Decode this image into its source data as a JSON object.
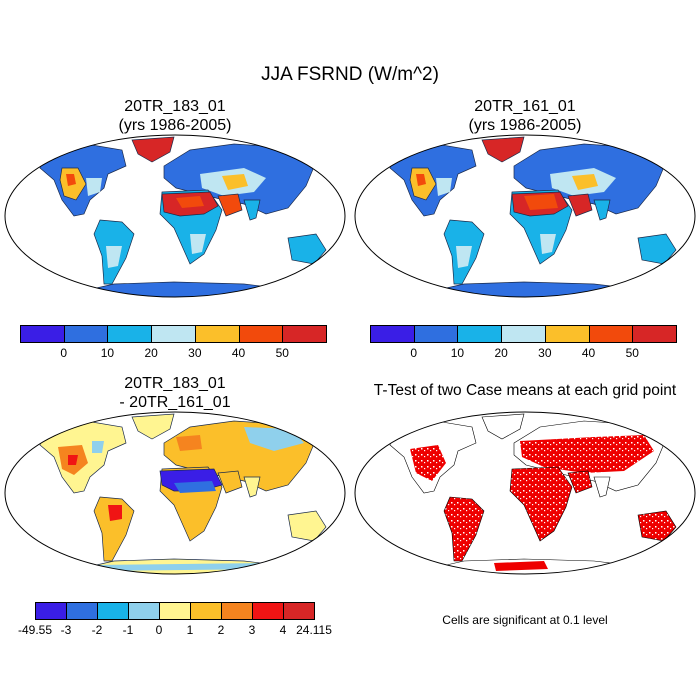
{
  "title": "JJA FSRND (W/m^2)",
  "panels": {
    "case1": {
      "line1": "20TR_183_01",
      "line2": "(yrs 1986-2005)"
    },
    "case2": {
      "line1": "20TR_161_01",
      "line2": "(yrs 1986-2005)"
    },
    "diff": {
      "line1": "20TR_183_01",
      "line2": "- 20TR_161_01"
    },
    "ttest": {
      "title": "T-Test of two Case means at each grid point"
    }
  },
  "colorbar_main": {
    "colors": [
      "#3a1ee6",
      "#2f6fe0",
      "#19b2e8",
      "#bfe6f2",
      "#fbbf2a",
      "#f24a0c",
      "#d72626"
    ],
    "labels": [
      "0",
      "10",
      "20",
      "30",
      "40",
      "50"
    ]
  },
  "colorbar_diff": {
    "colors": [
      "#3a1ee6",
      "#2f6fe0",
      "#19b2e8",
      "#8fd0ec",
      "#fff591",
      "#fbbf2a",
      "#f5841f",
      "#f01414",
      "#d72626"
    ],
    "labels": [
      "-49.55",
      "-3",
      "-2",
      "-1",
      "0",
      "1",
      "2",
      "3",
      "4",
      "24.115"
    ]
  },
  "note": "Cells are significant at 0.1 level"
}
